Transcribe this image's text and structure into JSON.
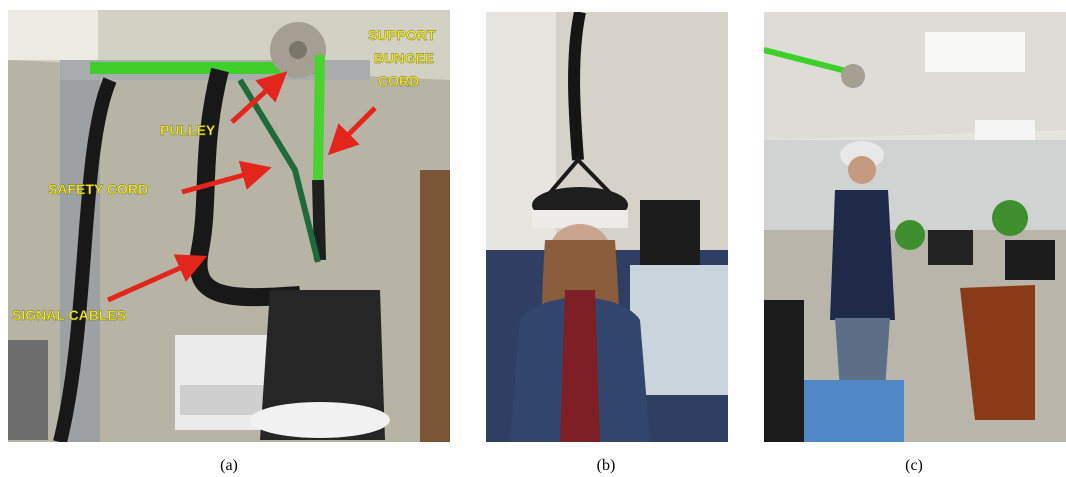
{
  "panels": [
    {
      "caption": "(a)",
      "annotations": [
        {
          "lines": [
            "SUPPORT",
            "BUNGEE",
            "CORD"
          ]
        },
        {
          "lines": [
            "PULLEY"
          ]
        },
        {
          "lines": [
            "SAFETY CORD"
          ]
        },
        {
          "lines": [
            "SIGNAL CABLES"
          ]
        }
      ]
    },
    {
      "caption": "(b)"
    },
    {
      "caption": "(c)"
    }
  ]
}
